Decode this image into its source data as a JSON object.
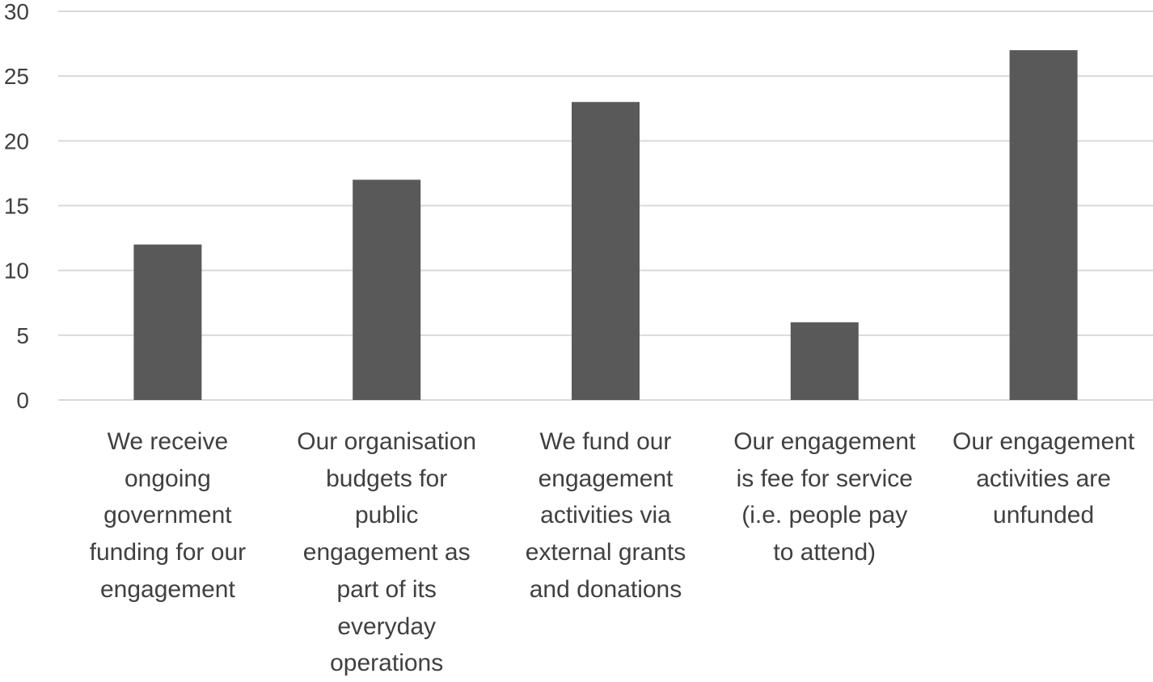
{
  "chart_data": {
    "type": "bar",
    "categories": [
      "We receive\nongoing\ngovernment\nfunding for our\nengagement",
      "Our organisation\nbudgets for\npublic\nengagement as\npart of its\neveryday\noperations",
      "We fund our\nengagement\nactivities via\nexternal grants\nand donations",
      "Our engagement\nis fee for service\n(i.e. people pay\nto attend)",
      "Our engagement\nactivities are\nunfunded"
    ],
    "values": [
      12,
      17,
      23,
      6,
      27
    ],
    "yticks": [
      "0",
      "5",
      "10",
      "15",
      "20",
      "25",
      "30"
    ],
    "ylim": [
      0,
      30
    ],
    "grid": true,
    "colors": {
      "bar": "#595959",
      "grid": "#d9d9d9",
      "text": "#404040"
    }
  }
}
